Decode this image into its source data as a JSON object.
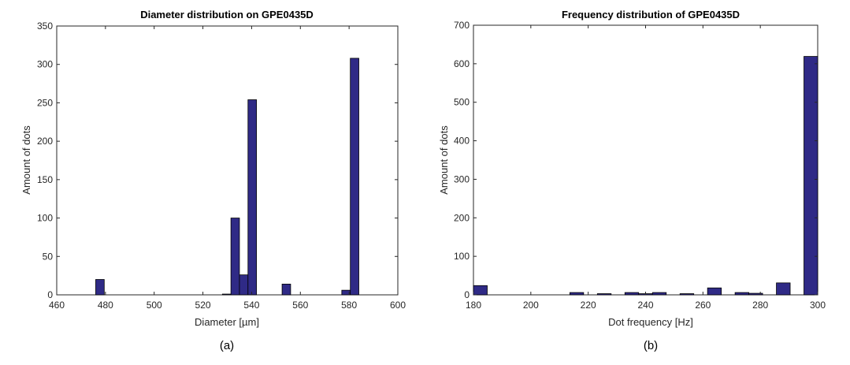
{
  "chart_data": [
    {
      "type": "bar",
      "title": "Diameter distribution on GPE0435D",
      "xlabel": "Diameter [µm]",
      "ylabel": "Amount of dots",
      "caption": "(a)",
      "xlim": [
        460,
        600
      ],
      "ylim": [
        0,
        350
      ],
      "xticks": [
        460,
        480,
        500,
        520,
        540,
        560,
        580,
        600
      ],
      "yticks": [
        0,
        50,
        100,
        150,
        200,
        250,
        300,
        350
      ],
      "grid": false,
      "bin_width": 3.5,
      "bins": [
        {
          "x0": 476,
          "x1": 479.5,
          "value": 20
        },
        {
          "x0": 528,
          "x1": 531.5,
          "value": 1
        },
        {
          "x0": 531.5,
          "x1": 535,
          "value": 100
        },
        {
          "x0": 535,
          "x1": 538.5,
          "value": 26
        },
        {
          "x0": 538.5,
          "x1": 542,
          "value": 254
        },
        {
          "x0": 552.5,
          "x1": 556,
          "value": 14
        },
        {
          "x0": 577,
          "x1": 580.5,
          "value": 6
        },
        {
          "x0": 580.5,
          "x1": 584,
          "value": 308
        }
      ],
      "bar_color": "#2f2a86"
    },
    {
      "type": "bar",
      "title": "Frequency distribution of GPE0435D",
      "xlabel": "Dot frequency [Hz]",
      "ylabel": "Amount of dots",
      "caption": "(b)",
      "xlim": [
        180,
        300
      ],
      "ylim": [
        0,
        700
      ],
      "xticks": [
        180,
        200,
        220,
        240,
        260,
        280,
        300
      ],
      "yticks": [
        0,
        100,
        200,
        300,
        400,
        500,
        600,
        700
      ],
      "grid": false,
      "bins": [
        {
          "x0": 180,
          "x1": 184.8,
          "value": 24
        },
        {
          "x0": 213.6,
          "x1": 218.4,
          "value": 6
        },
        {
          "x0": 223.2,
          "x1": 228,
          "value": 3
        },
        {
          "x0": 232.8,
          "x1": 237.6,
          "value": 6
        },
        {
          "x0": 237.6,
          "x1": 242.4,
          "value": 3
        },
        {
          "x0": 242.4,
          "x1": 247.2,
          "value": 6
        },
        {
          "x0": 252,
          "x1": 256.8,
          "value": 3
        },
        {
          "x0": 261.6,
          "x1": 266.4,
          "value": 18
        },
        {
          "x0": 271.2,
          "x1": 276,
          "value": 6
        },
        {
          "x0": 276,
          "x1": 280.8,
          "value": 4
        },
        {
          "x0": 285.6,
          "x1": 290.4,
          "value": 31
        },
        {
          "x0": 295.2,
          "x1": 300,
          "value": 619
        }
      ],
      "bar_color": "#2f2a86"
    }
  ]
}
